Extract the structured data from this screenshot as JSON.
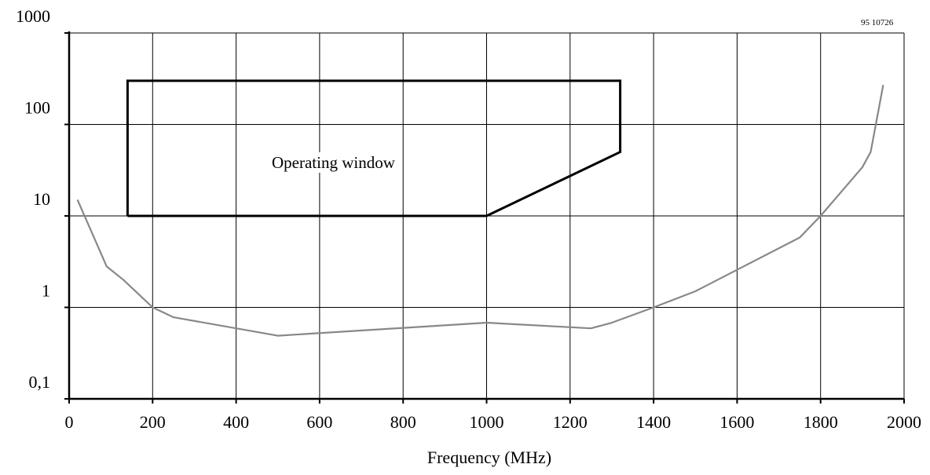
{
  "chart_data": {
    "type": "line",
    "xlabel": "Frequency (MHz)",
    "ylabel": "",
    "x_ticks": [
      "0",
      "200",
      "400",
      "600",
      "800",
      "1000",
      "1200",
      "1400",
      "1600",
      "1800",
      "2000"
    ],
    "y_ticks": [
      "0,1",
      "1",
      "10",
      "100",
      "1000"
    ],
    "xlim": [
      0,
      2000
    ],
    "ylim": [
      0.1,
      1000
    ],
    "y_scale": "log",
    "grid": true,
    "corner_code": "95 10726",
    "series": [
      {
        "color": "#888888",
        "points": [
          [
            20,
            15
          ],
          [
            90,
            2.8
          ],
          [
            130,
            2.0
          ],
          [
            200,
            1.0
          ],
          [
            250,
            0.78
          ],
          [
            500,
            0.49
          ],
          [
            1000,
            0.68
          ],
          [
            1250,
            0.59
          ],
          [
            1300,
            0.68
          ],
          [
            1400,
            1.0
          ],
          [
            1500,
            1.5
          ],
          [
            1750,
            5.8
          ],
          [
            1800,
            10
          ],
          [
            1900,
            34
          ],
          [
            1920,
            50
          ],
          [
            1950,
            270
          ]
        ]
      }
    ],
    "window": {
      "label": "Operating window",
      "color": "#000000",
      "outline": [
        [
          140,
          10
        ],
        [
          140,
          300
        ],
        [
          1320,
          300
        ],
        [
          1320,
          50
        ],
        [
          1000,
          10
        ]
      ]
    }
  }
}
